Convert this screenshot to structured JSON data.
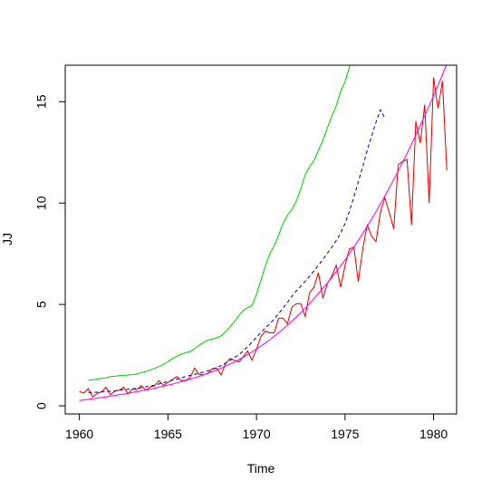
{
  "chart_data": {
    "type": "line",
    "title": "",
    "xlabel": "Time",
    "ylabel": "JJ",
    "xlim": [
      1959.2,
      1981.3
    ],
    "ylim": [
      -0.4,
      16.8
    ],
    "grid": false,
    "legend": "none",
    "x_ticks": [
      1960,
      1965,
      1970,
      1975,
      1980
    ],
    "y_ticks": [
      0,
      5,
      10,
      15
    ],
    "series": [
      {
        "color": "#dd0000",
        "style": "solid",
        "start": 1960.0,
        "step": 0.25,
        "values": [
          0.71,
          0.63,
          0.85,
          0.44,
          0.61,
          0.69,
          0.92,
          0.55,
          0.72,
          0.77,
          0.92,
          0.6,
          0.83,
          0.8,
          1.0,
          0.77,
          0.92,
          1.0,
          1.24,
          1.0,
          1.16,
          1.3,
          1.45,
          1.25,
          1.26,
          1.38,
          1.86,
          1.56,
          1.53,
          1.59,
          1.83,
          1.86,
          1.53,
          2.07,
          2.34,
          2.25,
          2.16,
          2.43,
          2.7,
          2.25,
          2.79,
          3.42,
          3.69,
          3.6,
          3.6,
          4.32,
          4.32,
          4.05,
          4.86,
          5.04,
          5.04,
          4.41,
          5.58,
          5.85,
          6.57,
          5.31,
          6.03,
          6.39,
          6.93,
          5.85,
          6.93,
          7.74,
          7.83,
          6.12,
          7.74,
          8.91,
          8.37,
          8.1,
          9.54,
          10.26,
          9.54,
          8.73,
          11.88,
          12.06,
          12.15,
          8.91,
          14.04,
          12.96,
          14.85,
          9.99,
          16.2,
          14.67,
          16.02,
          11.61
        ]
      },
      {
        "color": "#00cc00",
        "style": "solid",
        "start": 1960.5,
        "step": 0.25,
        "values": [
          1.26,
          1.28,
          1.32,
          1.36,
          1.38,
          1.44,
          1.46,
          1.49,
          1.5,
          1.52,
          1.54,
          1.58,
          1.64,
          1.7,
          1.76,
          1.85,
          1.94,
          2.05,
          2.18,
          2.32,
          2.44,
          2.55,
          2.62,
          2.68,
          2.82,
          2.98,
          3.12,
          3.24,
          3.3,
          3.35,
          3.45,
          3.65,
          3.9,
          4.15,
          4.45,
          4.7,
          4.85,
          4.95,
          5.5,
          6.2,
          6.9,
          7.5,
          7.9,
          8.4,
          9.0,
          9.4,
          9.7,
          10.1,
          10.7,
          11.4,
          11.8,
          12.1,
          12.6,
          13.1,
          13.7,
          14.3,
          14.8,
          15.5,
          16.0,
          16.7,
          17.4
        ]
      },
      {
        "color": "#000099",
        "style": "dashed",
        "start": 1960.5,
        "step": 0.25,
        "values": [
          0.66,
          0.66,
          0.67,
          0.68,
          0.7,
          0.72,
          0.74,
          0.77,
          0.8,
          0.82,
          0.84,
          0.86,
          0.89,
          0.94,
          0.98,
          1.02,
          1.08,
          1.14,
          1.2,
          1.26,
          1.32,
          1.38,
          1.44,
          1.5,
          1.55,
          1.6,
          1.66,
          1.72,
          1.8,
          1.89,
          1.98,
          2.1,
          2.24,
          2.38,
          2.52,
          2.7,
          2.92,
          3.14,
          3.38,
          3.63,
          3.84,
          4.05,
          4.29,
          4.55,
          4.82,
          5.1,
          5.4,
          5.67,
          5.9,
          6.14,
          6.4,
          6.66,
          6.93,
          7.22,
          7.52,
          7.82,
          8.15,
          8.52,
          9.0,
          9.6,
          10.3,
          11.05,
          11.8,
          12.6,
          13.3,
          14.0,
          14.6,
          14.2
        ]
      },
      {
        "color": "#ee00ee",
        "style": "solid",
        "start": 1960.0,
        "step": 0.25,
        "values": [
          0.26,
          0.29,
          0.32,
          0.35,
          0.38,
          0.41,
          0.44,
          0.48,
          0.51,
          0.55,
          0.58,
          0.62,
          0.66,
          0.7,
          0.74,
          0.78,
          0.82,
          0.87,
          0.92,
          0.97,
          1.02,
          1.07,
          1.13,
          1.19,
          1.25,
          1.31,
          1.38,
          1.45,
          1.52,
          1.6,
          1.68,
          1.77,
          1.86,
          1.96,
          2.06,
          2.17,
          2.28,
          2.4,
          2.53,
          2.66,
          2.8,
          2.95,
          3.1,
          3.26,
          3.43,
          3.61,
          3.79,
          3.98,
          4.18,
          4.38,
          4.6,
          4.82,
          5.05,
          5.29,
          5.54,
          5.8,
          6.06,
          6.33,
          6.61,
          6.9,
          7.2,
          7.51,
          7.83,
          8.16,
          8.5,
          8.85,
          9.21,
          9.58,
          9.96,
          10.35,
          10.75,
          11.16,
          11.58,
          12.01,
          12.45,
          12.9,
          13.36,
          13.83,
          14.31,
          14.8,
          15.3,
          15.81,
          16.33,
          16.86
        ]
      }
    ]
  }
}
